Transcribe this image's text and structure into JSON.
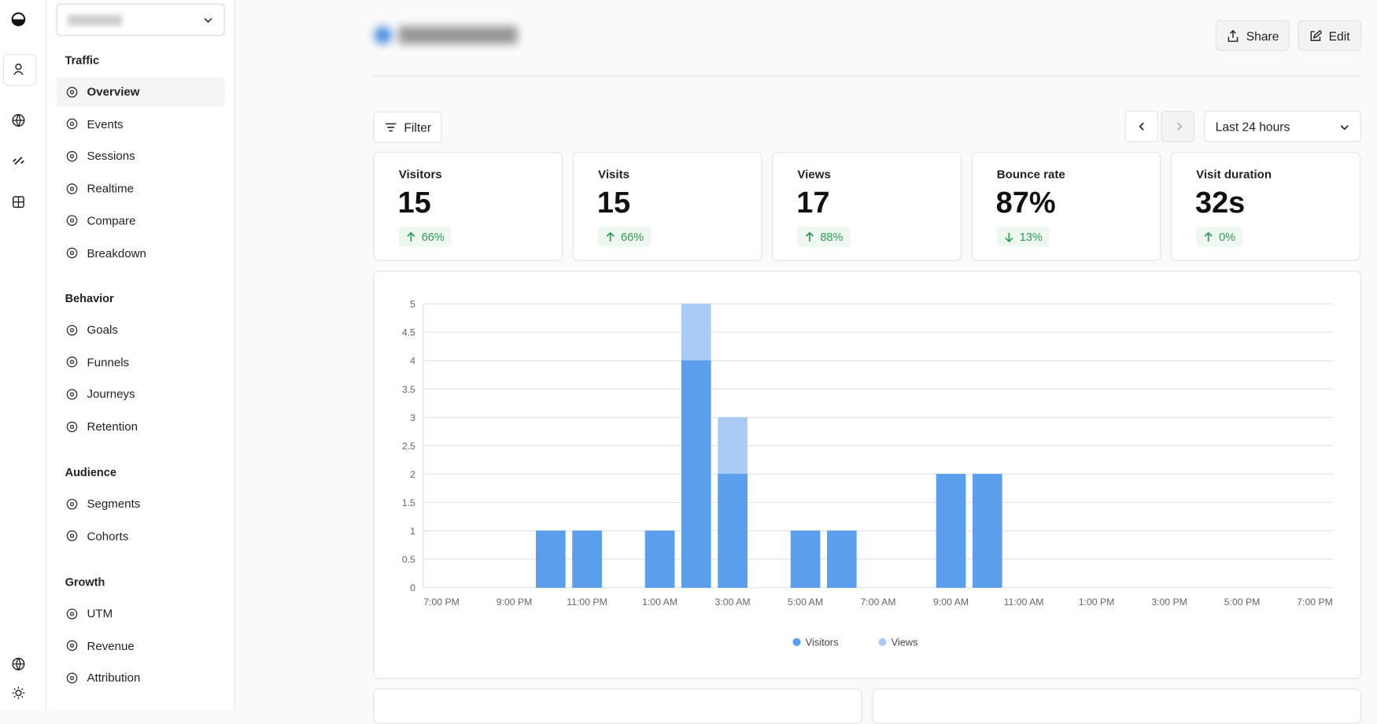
{
  "sidebar": {
    "sections": [
      {
        "title": "Traffic",
        "items": [
          "Overview",
          "Events",
          "Sessions",
          "Realtime",
          "Compare",
          "Breakdown"
        ]
      },
      {
        "title": "Behavior",
        "items": [
          "Goals",
          "Funnels",
          "Journeys",
          "Retention"
        ]
      },
      {
        "title": "Audience",
        "items": [
          "Segments",
          "Cohorts"
        ]
      },
      {
        "title": "Growth",
        "items": [
          "UTM",
          "Revenue",
          "Attribution"
        ]
      }
    ]
  },
  "header": {
    "buttons": [
      "Share",
      "Edit"
    ]
  },
  "toolbar": {
    "filter": "Filter",
    "date_range": "Last 24 hours"
  },
  "metrics": [
    {
      "label": "Visitors",
      "value": "15",
      "change": "66%",
      "direction": "up"
    },
    {
      "label": "Visits",
      "value": "15",
      "change": "66%",
      "direction": "up"
    },
    {
      "label": "Views",
      "value": "17",
      "change": "88%",
      "direction": "up"
    },
    {
      "label": "Bounce rate",
      "value": "87%",
      "change": "13%",
      "direction": "down"
    },
    {
      "label": "Visit duration",
      "value": "32s",
      "change": "0%",
      "direction": "up"
    }
  ],
  "chart_data": {
    "type": "bar",
    "overlay": true,
    "categories": [
      "7:00 PM",
      null,
      "9:00 PM",
      null,
      "11:00 PM",
      null,
      "1:00 AM",
      null,
      "3:00 AM",
      null,
      "5:00 AM",
      null,
      "7:00 AM",
      null,
      "9:00 AM",
      null,
      "11:00 AM",
      null,
      "1:00 PM",
      null,
      "3:00 PM",
      null,
      "5:00 PM",
      null,
      "7:00 PM"
    ],
    "series": [
      {
        "name": "Visitors",
        "color": "#5a9eec",
        "values": [
          0,
          0,
          0,
          1,
          1,
          0,
          1,
          4,
          2,
          0,
          1,
          1,
          0,
          0,
          2,
          2,
          0,
          0,
          0,
          0,
          0,
          0,
          0,
          0,
          0
        ]
      },
      {
        "name": "Views",
        "color": "#a9cbf4",
        "values": [
          0,
          0,
          0,
          1,
          1,
          0,
          1,
          5,
          3,
          0,
          1,
          1,
          0,
          0,
          2,
          2,
          0,
          0,
          0,
          0,
          0,
          0,
          0,
          0,
          0
        ]
      }
    ],
    "ylim": [
      0,
      5
    ],
    "yticks": [
      0,
      0.5,
      1,
      1.5,
      2,
      2.5,
      3,
      3.5,
      4,
      4.5,
      5
    ],
    "grid": true
  }
}
